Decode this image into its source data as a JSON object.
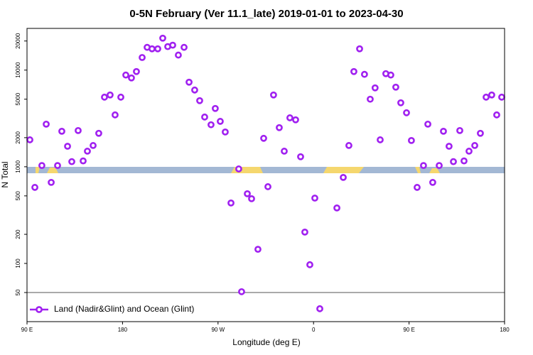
{
  "chart_data": {
    "type": "scatter",
    "title": "0-5N February (Ver 11.1_late)   2019-01-01 to 2023-04-30",
    "x_label": "Longitude (deg E)",
    "y_label": "N Total",
    "log_y": true,
    "legend_position": "lower left",
    "reference_line": 50,
    "xlim": [
      90,
      540
    ],
    "xticks": [
      {
        "value": 90,
        "label": "90 E"
      },
      180,
      {
        "value": 270,
        "label": "90 W"
      },
      {
        "value": 360,
        "label": "0"
      },
      {
        "value": 450,
        "label": "90 E"
      },
      {
        "value": 540,
        "label": "180"
      }
    ],
    "ylim": [
      25,
      27000
    ],
    "yticks": [
      50,
      100,
      200,
      500,
      1000,
      2000,
      5000,
      10000,
      20000
    ],
    "series": [
      {
        "name": "Land (Nadir&Glint) and Ocean (Glint)",
        "color": "#a020f0",
        "x": [
          92.7,
          97.4,
          104,
          108.1,
          112.8,
          118.8,
          122.8,
          128.2,
          132.2,
          138.2,
          142.9,
          146.9,
          152.3,
          157.6,
          163,
          168.3,
          173,
          178.4,
          183.1,
          188.4,
          193.1,
          198.5,
          203.2,
          207.8,
          213.2,
          217.9,
          222.6,
          227.3,
          232.6,
          238,
          242.7,
          248,
          252.7,
          257.4,
          263.4,
          267.4,
          272.1,
          276.8,
          282.2,
          289.5,
          292.2,
          297.6,
          301.6,
          307.6,
          313,
          317,
          322.3,
          327.7,
          332.4,
          337.7,
          343.1,
          347.8,
          351.8,
          356.5,
          361.2,
          365.9,
          382,
          388,
          393.3,
          398,
          403.4,
          408,
          413.4,
          418,
          422.8,
          428.1,
          432.8,
          437.5,
          442.2,
          447.6,
          452.2,
          457.6,
          463.6,
          467.7,
          472.3,
          478.4,
          482.4,
          487.7,
          491.8,
          497.8,
          501.8,
          506.5,
          511.9,
          517.2,
          522.6,
          527.9,
          532.6,
          537.3
        ],
        "values": [
          1900,
          612,
          1030,
          2760,
          689,
          1030,
          2330,
          1630,
          1130,
          2370,
          1150,
          1450,
          1660,
          2220,
          5250,
          5530,
          3440,
          5250,
          8890,
          8300,
          9660,
          13500,
          17200,
          16600,
          16600,
          21400,
          17500,
          18100,
          14300,
          17200,
          7500,
          6220,
          4830,
          3270,
          2720,
          4010,
          2950,
          2290,
          422,
          950,
          51,
          526,
          467,
          140,
          1970,
          622,
          5530,
          2540,
          1450,
          3210,
          3060,
          1270,
          211,
          97,
          474,
          34,
          375,
          776,
          1660,
          9660,
          16600,
          9040,
          5000,
          6550,
          1900,
          9190,
          8890,
          6660,
          4590,
          3620,
          1870,
          612,
          1030,
          2760,
          689,
          1030,
          2330,
          1630,
          1130,
          2370,
          1150,
          1450,
          1660,
          2220,
          5250,
          5530,
          3440,
          5250
        ]
      }
    ]
  }
}
